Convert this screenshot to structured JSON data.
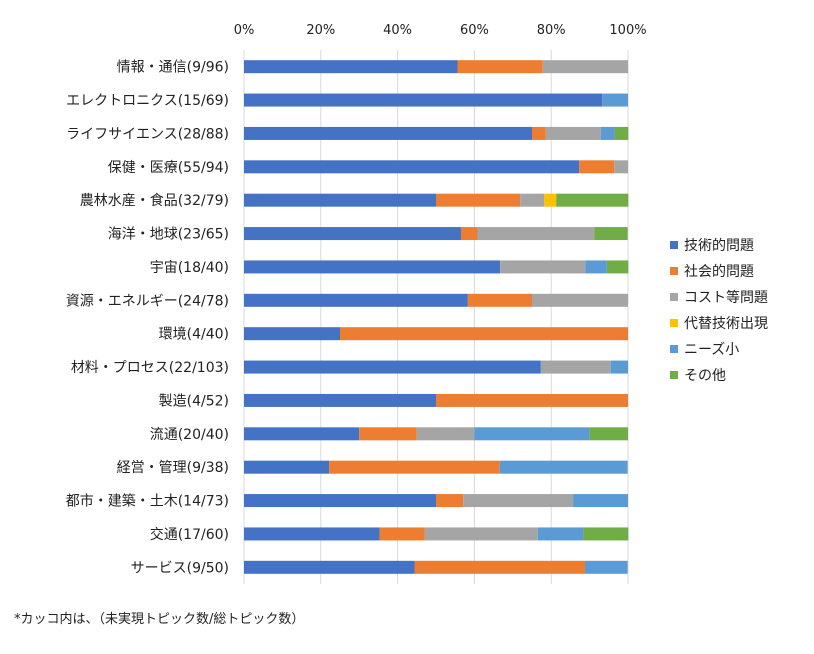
{
  "chart_data": {
    "type": "bar",
    "orientation": "horizontal",
    "stacked": "percent",
    "categories": [
      "情報・通信(9/96)",
      "エレクトロニクス(15/69)",
      "ライフサイエンス(28/88)",
      "保健・医療(55/94)",
      "農林水産・食品(32/79)",
      "海洋・地球(23/65)",
      "宇宙(18/40)",
      "資源・エネルギー(24/78)",
      "環境(4/40)",
      "材料・プロセス(22/103)",
      "製造(4/52)",
      "流通(20/40)",
      "経営・管理(9/38)",
      "都市・建築・土木(14/73)",
      "交通(17/60)",
      "サービス(9/50)"
    ],
    "series": [
      {
        "name": "技術的問題",
        "color": "#4472C4",
        "values": [
          55.6,
          93.3,
          75.0,
          87.3,
          50.0,
          56.5,
          66.7,
          58.3,
          25.0,
          77.3,
          50.0,
          30.0,
          22.2,
          50.0,
          35.3,
          44.4
        ]
      },
      {
        "name": "社会的問題",
        "color": "#ED7D31",
        "values": [
          22.2,
          0,
          3.6,
          9.1,
          21.9,
          4.3,
          0,
          16.7,
          75.0,
          0,
          50.0,
          15.0,
          44.4,
          7.1,
          11.8,
          44.4
        ]
      },
      {
        "name": "コスト等問題",
        "color": "#A5A5A5",
        "values": [
          22.2,
          0,
          14.3,
          3.6,
          6.3,
          30.4,
          22.2,
          25.0,
          0,
          18.2,
          0,
          15.0,
          0,
          28.6,
          29.4,
          0
        ]
      },
      {
        "name": "代替技術出現",
        "color": "#FFC000",
        "values": [
          0,
          0,
          0,
          0,
          3.1,
          0,
          0,
          0,
          0,
          0,
          0,
          0,
          0,
          0,
          0,
          0
        ]
      },
      {
        "name": "ニーズ小",
        "color": "#5B9BD5",
        "values": [
          0,
          6.7,
          3.6,
          0,
          0,
          0,
          5.6,
          0,
          0,
          4.5,
          0,
          30.0,
          33.3,
          14.3,
          11.8,
          11.1
        ]
      },
      {
        "name": "その他",
        "color": "#70AD47",
        "values": [
          0,
          0,
          3.6,
          0,
          18.8,
          8.7,
          5.6,
          0,
          0,
          0,
          0,
          10.0,
          0,
          0,
          11.8,
          0
        ]
      }
    ],
    "xticks": [
      "0%",
      "20%",
      "40%",
      "60%",
      "80%",
      "100%"
    ],
    "xlim": [
      0,
      100
    ],
    "axis_position": "top",
    "grid": true,
    "legend_position": "right"
  },
  "footnote": "*カッコ内は、（未実現トピック数/総トピック数）"
}
